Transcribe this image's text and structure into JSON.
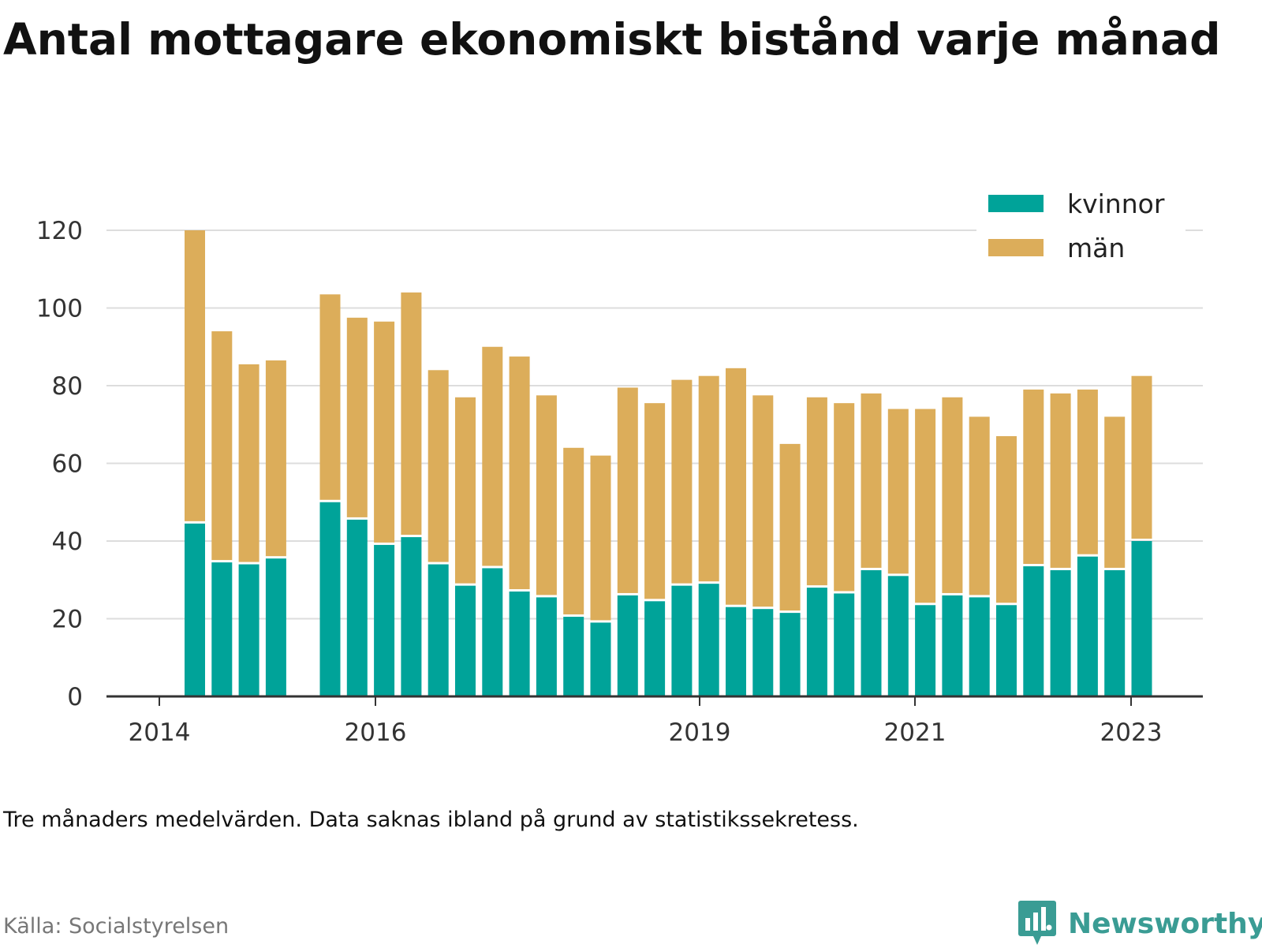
{
  "title": "Antal mottagare ekonomiskt bistånd varje månad",
  "note": "Tre månaders medelvärden. Data saknas ibland på grund av statistikssekretess.",
  "source": "Källa: Socialstyrelsen",
  "brand": "Newsworthy",
  "colors": {
    "kvinnor": "#00a399",
    "man": "#dcad5a",
    "grid": "#dddddd",
    "axis": "#333333",
    "brand": "#3a9c94"
  },
  "chart_data": {
    "type": "bar",
    "stacked": true,
    "title": "Antal mottagare ekonomiskt bistånd varje månad",
    "x_ticks": [
      "2014",
      "2016",
      "2019",
      "2021",
      "2023"
    ],
    "y_ticks": [
      "0",
      "20",
      "40",
      "60",
      "80",
      "100",
      "120"
    ],
    "ylim": [
      0,
      125
    ],
    "grid": true,
    "legend_position": "top-right",
    "series": [
      {
        "name": "kvinnor",
        "values": [
          44.5,
          34.5,
          34,
          35.5,
          null,
          50,
          45.5,
          39,
          41,
          34,
          28.5,
          33,
          27,
          25.5,
          20.5,
          19,
          26,
          24.5,
          28.5,
          29,
          23,
          22.5,
          21.5,
          28,
          26.5,
          32.5,
          31,
          23.5,
          26,
          25.5,
          23.5,
          33.5,
          32.5,
          36,
          32.5,
          40
        ]
      },
      {
        "name": "män",
        "values": [
          75.5,
          59.5,
          51.5,
          51,
          null,
          53.5,
          52,
          57.5,
          63,
          50,
          48.5,
          57,
          60.5,
          52,
          43.5,
          43,
          53.5,
          51,
          53,
          53.5,
          61.5,
          55,
          43.5,
          49,
          49,
          45.5,
          43,
          50.5,
          51,
          46.5,
          43.5,
          45.5,
          45.5,
          43,
          39.5,
          42.5
        ]
      }
    ]
  }
}
